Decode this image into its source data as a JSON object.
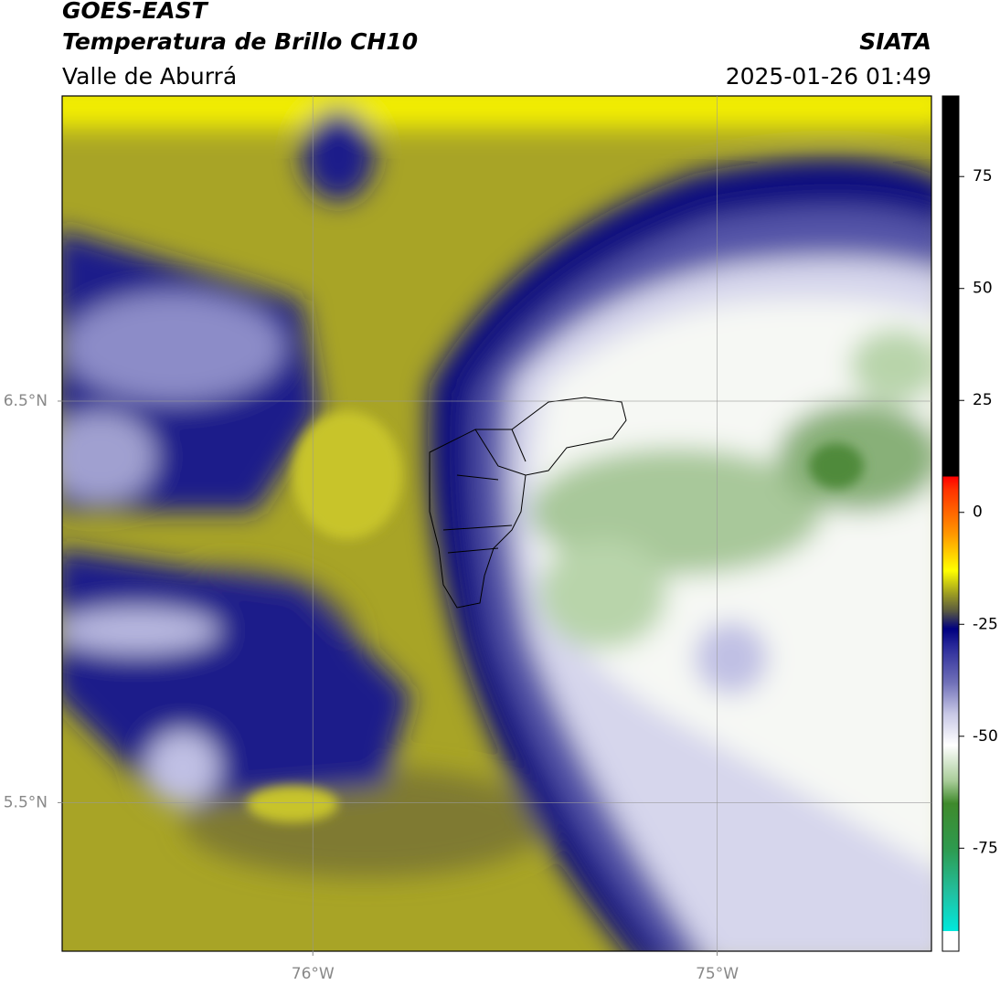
{
  "header": {
    "satellite": "GOES-EAST",
    "product": "Temperatura de Brillo CH10",
    "region": "Valle de Aburrá",
    "agency": "SIATA",
    "datetime": "2025-01-26 01:49"
  },
  "map": {
    "xlim": [
      -76.62,
      -74.47
    ],
    "ylim": [
      5.13,
      7.26
    ],
    "xticks": [
      {
        "value": -76,
        "label": "76°W"
      },
      {
        "value": -75,
        "label": "75°W"
      }
    ],
    "yticks": [
      {
        "value": 6.5,
        "label": "6.5°N"
      },
      {
        "value": 5.5,
        "label": "5.5°N"
      }
    ],
    "grid": true
  },
  "colorbar": {
    "lim": [
      -98,
      93
    ],
    "ticks": [
      75,
      50,
      25,
      0,
      -25,
      -50,
      -75
    ],
    "stops": [
      {
        "value": -98,
        "color": "#ffffff"
      },
      {
        "value": -93.5,
        "color": "#ffffff"
      },
      {
        "value": -93.5,
        "color": "#00e8dc"
      },
      {
        "value": -85,
        "color": "#22c0a0"
      },
      {
        "value": -75,
        "color": "#2e9a4e"
      },
      {
        "value": -65,
        "color": "#3f8a2c"
      },
      {
        "value": -60,
        "color": "#a8cc98"
      },
      {
        "value": -52,
        "color": "#ffffff"
      },
      {
        "value": -45,
        "color": "#c8c8e6"
      },
      {
        "value": -38,
        "color": "#7070b8"
      },
      {
        "value": -30,
        "color": "#2a2a9a"
      },
      {
        "value": -26,
        "color": "#000080"
      },
      {
        "value": -22,
        "color": "#5a5a40"
      },
      {
        "value": -18,
        "color": "#a0a020"
      },
      {
        "value": -13,
        "color": "#ffff00"
      },
      {
        "value": -5,
        "color": "#ff9900"
      },
      {
        "value": 5,
        "color": "#ff3300"
      },
      {
        "value": 8,
        "color": "#ff0000"
      },
      {
        "value": 8,
        "color": "#000000"
      },
      {
        "value": 93,
        "color": "#000000"
      }
    ]
  }
}
